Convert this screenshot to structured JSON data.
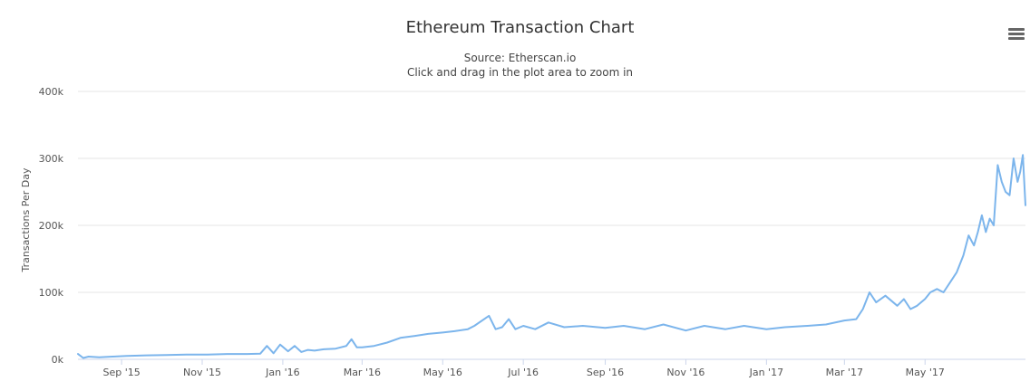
{
  "chart_data": {
    "type": "line",
    "title": "Ethereum Transaction Chart",
    "subtitle": "Source: Etherscan.io",
    "subtitle2": "Click and drag in the plot area to zoom in",
    "ylabel": "Transactions Per Day",
    "xlabel": "",
    "ylim": [
      0,
      400000
    ],
    "y_ticks": [
      "0k",
      "100k",
      "200k",
      "300k",
      "400k"
    ],
    "x_ticks": [
      "Sep '15",
      "Nov '15",
      "Jan '16",
      "Mar '16",
      "May '16",
      "Jul '16",
      "Sep '16",
      "Nov '16",
      "Jan '17",
      "Mar '17",
      "May '17"
    ],
    "x_tick_dates": [
      "2015-09-01",
      "2015-11-01",
      "2016-01-01",
      "2016-03-01",
      "2016-05-01",
      "2016-07-01",
      "2016-09-01",
      "2016-11-01",
      "2017-01-01",
      "2017-03-01",
      "2017-05-01"
    ],
    "x_range": [
      "2015-07-30",
      "2017-07-16"
    ],
    "grid": true,
    "legend": "none",
    "color": "#7cb5ec",
    "series": [
      {
        "x": [
          "2015-07-30",
          "2015-08-03",
          "2015-08-07",
          "2015-08-15",
          "2015-08-25",
          "2015-09-05",
          "2015-09-20",
          "2015-10-05",
          "2015-10-20",
          "2015-11-05",
          "2015-11-20",
          "2015-12-05",
          "2015-12-15",
          "2015-12-20",
          "2015-12-25",
          "2015-12-30",
          "2016-01-05",
          "2016-01-10",
          "2016-01-15",
          "2016-01-20",
          "2016-01-25",
          "2016-02-01",
          "2016-02-10",
          "2016-02-18",
          "2016-02-22",
          "2016-02-26",
          "2016-03-01",
          "2016-03-10",
          "2016-03-20",
          "2016-03-30",
          "2016-04-10",
          "2016-04-20",
          "2016-05-01",
          "2016-05-10",
          "2016-05-20",
          "2016-05-25",
          "2016-06-05",
          "2016-06-10",
          "2016-06-15",
          "2016-06-20",
          "2016-06-25",
          "2016-07-01",
          "2016-07-10",
          "2016-07-20",
          "2016-08-01",
          "2016-08-15",
          "2016-09-01",
          "2016-09-15",
          "2016-10-01",
          "2016-10-15",
          "2016-11-01",
          "2016-11-15",
          "2016-12-01",
          "2016-12-15",
          "2017-01-01",
          "2017-01-15",
          "2017-02-01",
          "2017-02-15",
          "2017-03-01",
          "2017-03-10",
          "2017-03-15",
          "2017-03-20",
          "2017-03-25",
          "2017-04-01",
          "2017-04-10",
          "2017-04-15",
          "2017-04-20",
          "2017-04-25",
          "2017-05-01",
          "2017-05-05",
          "2017-05-10",
          "2017-05-15",
          "2017-05-20",
          "2017-05-25",
          "2017-05-30",
          "2017-06-03",
          "2017-06-07",
          "2017-06-10",
          "2017-06-13",
          "2017-06-16",
          "2017-06-19",
          "2017-06-22",
          "2017-06-25",
          "2017-06-28",
          "2017-07-01",
          "2017-07-04",
          "2017-07-07",
          "2017-07-10",
          "2017-07-12",
          "2017-07-14",
          "2017-07-16"
        ],
        "y": [
          8000,
          2000,
          4000,
          3000,
          4000,
          5000,
          6000,
          6500,
          7000,
          7000,
          8000,
          8000,
          8500,
          20000,
          9000,
          22000,
          12000,
          20000,
          11000,
          14000,
          13000,
          15000,
          16000,
          20000,
          30000,
          18000,
          18000,
          20000,
          25000,
          32000,
          35000,
          38000,
          40000,
          42000,
          45000,
          50000,
          65000,
          45000,
          48000,
          60000,
          45000,
          50000,
          45000,
          55000,
          48000,
          50000,
          47000,
          50000,
          45000,
          52000,
          43000,
          50000,
          45000,
          50000,
          45000,
          48000,
          50000,
          52000,
          58000,
          60000,
          75000,
          100000,
          85000,
          95000,
          80000,
          90000,
          75000,
          80000,
          90000,
          100000,
          105000,
          100000,
          115000,
          130000,
          155000,
          185000,
          170000,
          190000,
          215000,
          190000,
          210000,
          200000,
          290000,
          265000,
          250000,
          245000,
          300000,
          265000,
          280000,
          305000,
          230000
        ]
      }
    ]
  },
  "exporting": {
    "menu_icon": "hamburger-menu-icon"
  }
}
